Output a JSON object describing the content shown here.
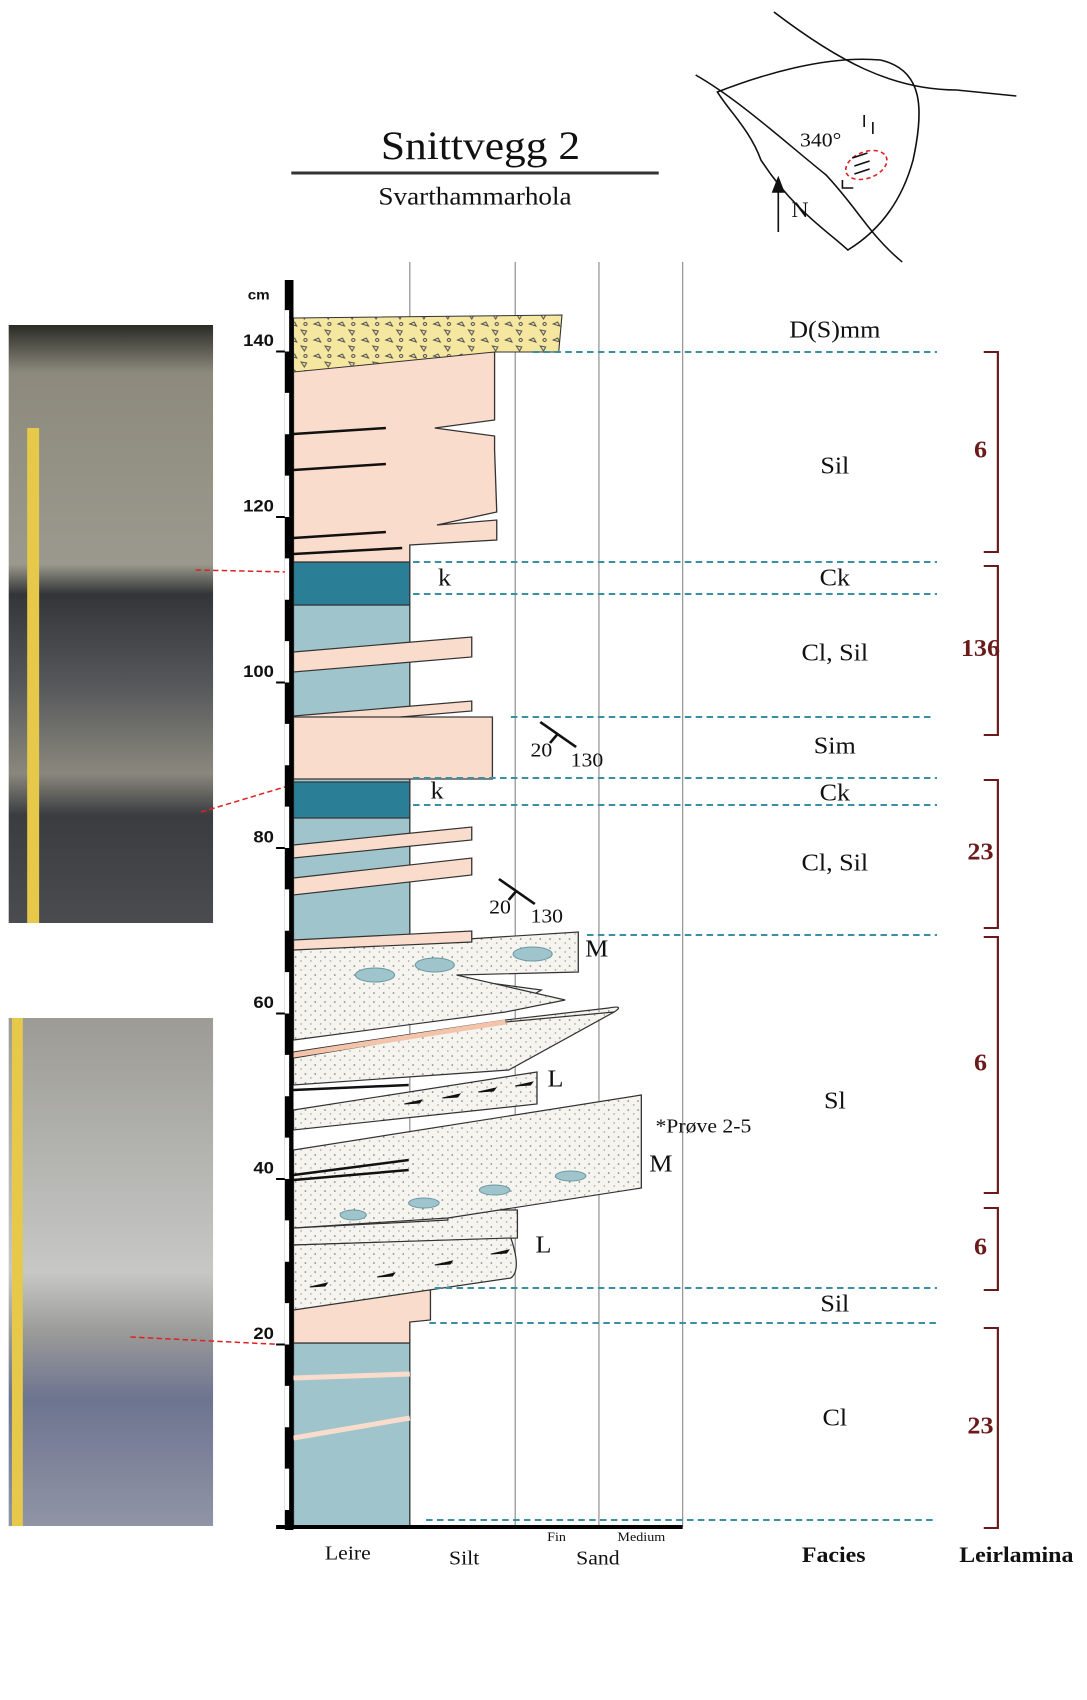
{
  "header": {
    "title": "Snittvegg 2",
    "subtitle": "Svarthammarhola"
  },
  "map": {
    "bearing": "340°",
    "north": "N"
  },
  "depth_axis": {
    "unit": "cm",
    "ticks": [
      20,
      40,
      60,
      80,
      100,
      120,
      140
    ]
  },
  "grain_size_axis": {
    "labels": [
      "Leire",
      "Silt",
      "Sand"
    ],
    "sand_sublabels": [
      "Fin",
      "Medium"
    ]
  },
  "column_headers": {
    "facies": "Facies",
    "leirlamina": "Leirlamina"
  },
  "facies": [
    "D(S)mm",
    "Sil",
    "Ck",
    "Cl, Sil",
    "Sim",
    "Ck",
    "Cl, Sil",
    "Sl",
    "Sil",
    "Cl"
  ],
  "leirlamina": [
    6,
    136,
    23,
    6,
    6,
    23
  ],
  "annotations": {
    "k_upper": "k",
    "k_lower": "k",
    "m_upper": "M",
    "l_upper": "L",
    "m_lower": "M",
    "l_lower": "L",
    "sample": "*Prøve 2-5"
  },
  "dips": [
    {
      "dip": "20",
      "strike": "130"
    },
    {
      "dip": "20",
      "strike": "130"
    }
  ]
}
